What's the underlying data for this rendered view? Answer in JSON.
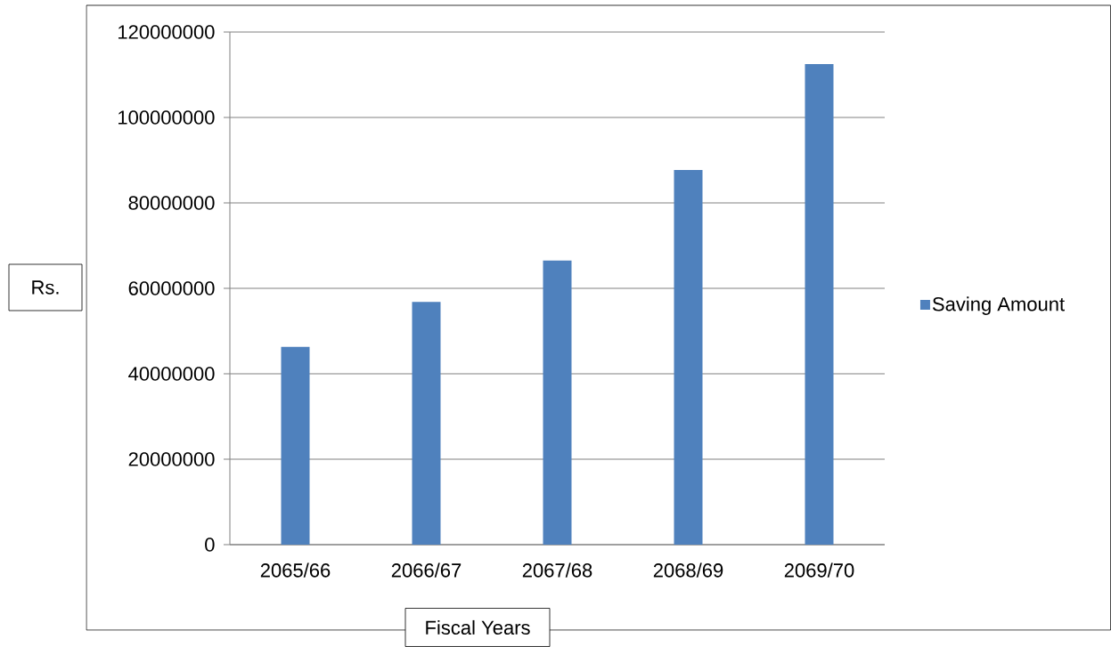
{
  "chart_data": {
    "type": "bar",
    "xlabel": "Fiscal Years",
    "ylabel": "Rs.",
    "categories": [
      "2065/66",
      "2066/67",
      "2067/68",
      "2068/69",
      "2069/70"
    ],
    "series": [
      {
        "name": "Saving Amount",
        "color": "#4f81bd",
        "values": [
          46300000,
          56800000,
          66500000,
          87700000,
          112500000
        ]
      }
    ],
    "ylim": [
      0,
      120000000
    ],
    "yticks": [
      0,
      20000000,
      40000000,
      60000000,
      80000000,
      100000000,
      120000000
    ],
    "grid": "y",
    "legend": "right"
  }
}
